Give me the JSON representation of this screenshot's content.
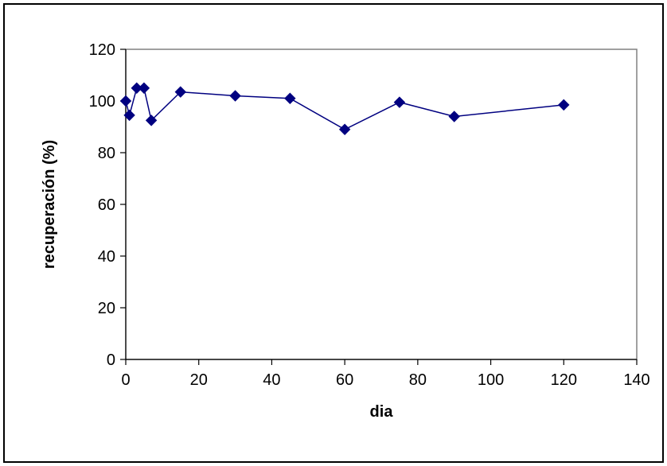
{
  "chart_data": {
    "type": "scatter",
    "title": "",
    "xlabel": "dia",
    "ylabel": "recuperación (%)",
    "xlim": [
      0,
      140
    ],
    "ylim": [
      0,
      120
    ],
    "xticks": [
      0,
      20,
      40,
      60,
      80,
      100,
      120,
      140
    ],
    "yticks": [
      0,
      20,
      40,
      60,
      80,
      100,
      120
    ],
    "grid": false,
    "legend": "none",
    "colors": {
      "series": "#000080",
      "plot_border": "#808080"
    },
    "series": [
      {
        "marker": "diamond",
        "connected": true,
        "x": [
          0,
          1,
          3,
          5,
          7,
          15,
          30,
          45,
          60,
          75,
          90,
          120
        ],
        "y": [
          100,
          94.5,
          105,
          105,
          92.5,
          103.5,
          102,
          101,
          89,
          99.5,
          94,
          98.5
        ]
      }
    ]
  }
}
